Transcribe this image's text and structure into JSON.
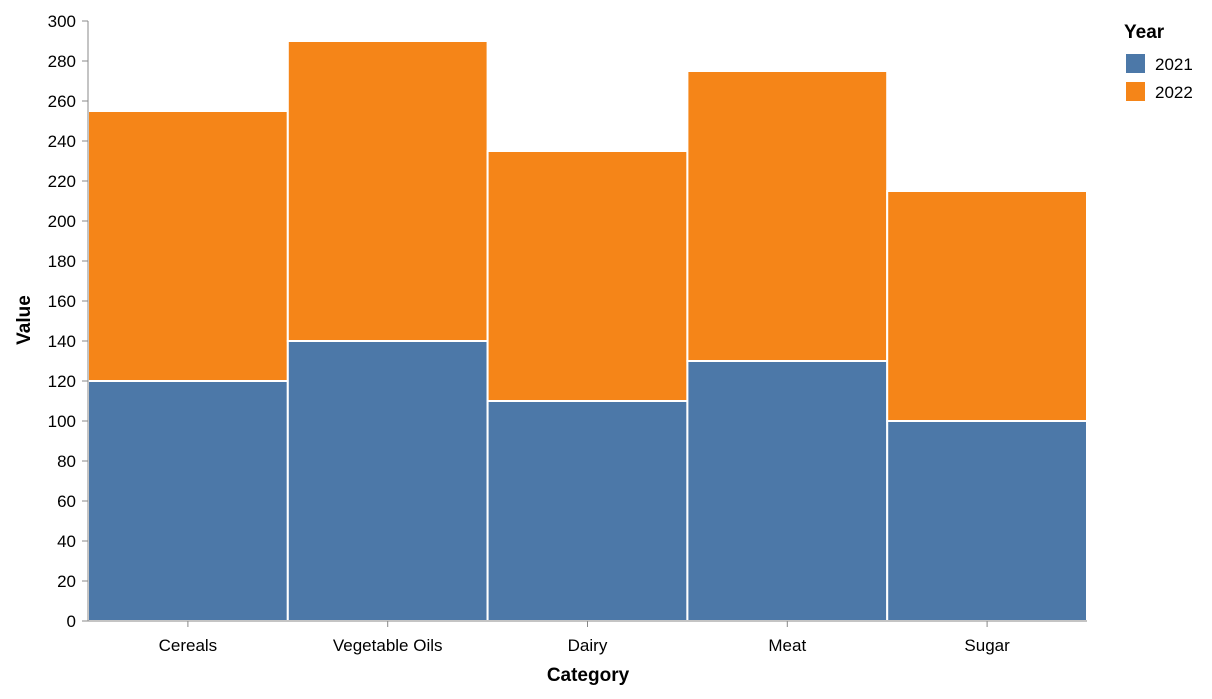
{
  "chart_data": {
    "type": "bar",
    "stacked": true,
    "title": "",
    "xlabel": "Category",
    "ylabel": "Value",
    "ylim": [
      0,
      300
    ],
    "yticks": [
      0,
      20,
      40,
      60,
      80,
      100,
      120,
      140,
      160,
      180,
      200,
      220,
      240,
      260,
      280,
      300
    ],
    "grid": false,
    "categories": [
      "Cereals",
      "Vegetable Oils",
      "Dairy",
      "Meat",
      "Sugar"
    ],
    "series": [
      {
        "name": "2021",
        "color": "#4c78a8",
        "values": [
          120,
          140,
          110,
          130,
          100
        ]
      },
      {
        "name": "2022",
        "color": "#f58518",
        "values": [
          135,
          150,
          125,
          145,
          115
        ]
      }
    ],
    "legend": {
      "title": "Year",
      "position": "top-right"
    }
  }
}
